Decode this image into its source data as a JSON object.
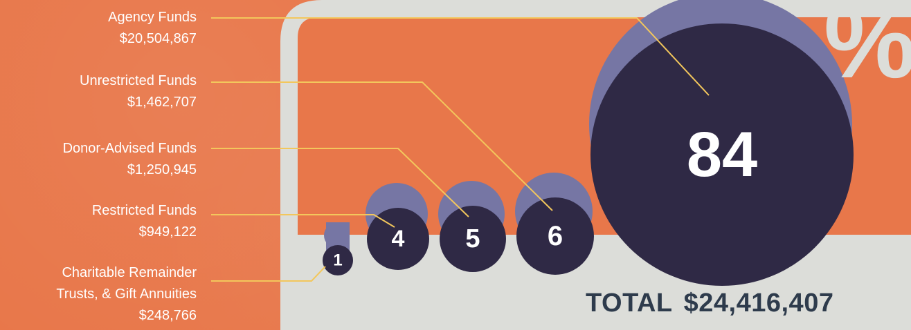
{
  "chart_data": {
    "type": "bubble",
    "unit": "%",
    "series": [
      {
        "label_lines": [
          "Agency Funds"
        ],
        "amount": "$20,504,867",
        "percent": 84
      },
      {
        "label_lines": [
          "Unrestricted Funds"
        ],
        "amount": "$1,462,707",
        "percent": 6
      },
      {
        "label_lines": [
          "Donor-Advised Funds"
        ],
        "amount": "$1,250,945",
        "percent": 5
      },
      {
        "label_lines": [
          "Restricted Funds"
        ],
        "amount": "$949,122",
        "percent": 4
      },
      {
        "label_lines": [
          "Charitable Remainder",
          "Trusts, & Gift Annuities"
        ],
        "amount": "$248,766",
        "percent": 1
      }
    ],
    "total_label": "TOTAL",
    "total_amount": "$24,416,407"
  },
  "colors": {
    "background": "#E8774A",
    "panel": "#DCDDD9",
    "bubble_dark": "#2F2945",
    "bubble_light": "#7676A4",
    "leader_line": "#F3C75C",
    "label_text": "#FFFFFF",
    "total_text": "#2E3B4C"
  }
}
